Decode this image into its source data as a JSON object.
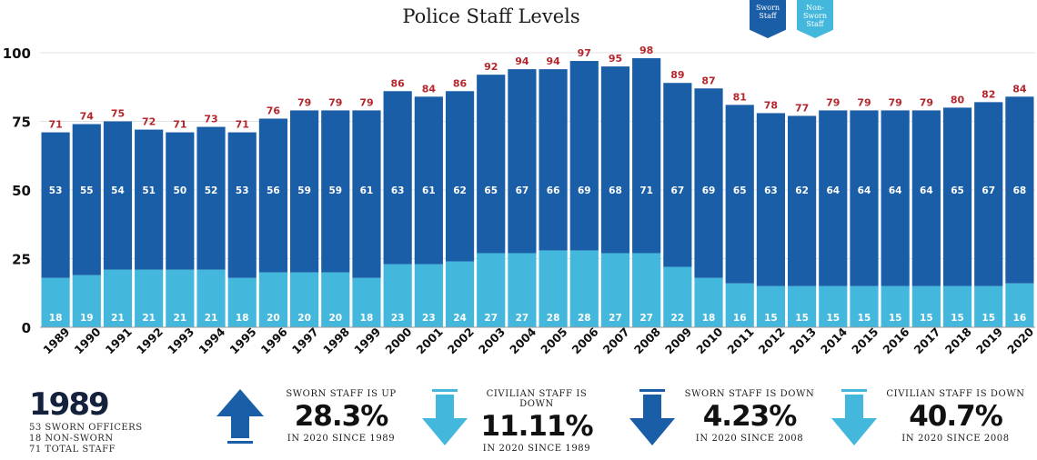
{
  "chart_data": {
    "type": "bar",
    "stacked": true,
    "title": "Police Staff Levels",
    "categories": [
      "1989",
      "1990",
      "1991",
      "1992",
      "1993",
      "1994",
      "1995",
      "1996",
      "1997",
      "1998",
      "1999",
      "2000",
      "2001",
      "2002",
      "2003",
      "2004",
      "2005",
      "2006",
      "2007",
      "2008",
      "2009",
      "2010",
      "2011",
      "2012",
      "2013",
      "2014",
      "2015",
      "2016",
      "2017",
      "2018",
      "2019",
      "2020"
    ],
    "series": [
      {
        "name": "Non-Sworn Staff",
        "color": "#43b8dc",
        "values": [
          18,
          19,
          21,
          21,
          21,
          21,
          18,
          20,
          20,
          20,
          18,
          23,
          23,
          24,
          27,
          27,
          28,
          28,
          27,
          27,
          22,
          18,
          16,
          15,
          15,
          15,
          15,
          15,
          15,
          15,
          15,
          16
        ]
      },
      {
        "name": "Sworn Staff",
        "color": "#1b5ea8",
        "values": [
          53,
          55,
          54,
          51,
          50,
          52,
          53,
          56,
          59,
          59,
          61,
          63,
          61,
          62,
          65,
          67,
          66,
          69,
          68,
          71,
          67,
          69,
          65,
          63,
          62,
          64,
          64,
          64,
          64,
          65,
          67,
          68
        ]
      }
    ],
    "totals": [
      71,
      74,
      75,
      72,
      71,
      73,
      71,
      76,
      79,
      79,
      79,
      86,
      84,
      86,
      92,
      94,
      94,
      97,
      95,
      98,
      89,
      87,
      81,
      78,
      77,
      79,
      79,
      79,
      79,
      80,
      82,
      84
    ],
    "ylim": [
      0,
      100
    ],
    "yticks": [
      0,
      25,
      50,
      75,
      100
    ],
    "grid": true,
    "legend": "top-right",
    "total_label_color": "#b5252c"
  },
  "legend": {
    "sworn_label": "Sworn Staff",
    "non_sworn_label": "Non-Sworn Staff"
  },
  "summary": {
    "year": "1989",
    "line1": "53 SWORN OFFICERS",
    "line2": "18 NON-SWORN",
    "line3": "71 TOTAL STAFF"
  },
  "stats": [
    {
      "head": "SWORN STAFF IS UP",
      "value": "28.3%",
      "foot": "IN 2020 SINCE 1989",
      "direction": "up",
      "color": "#1b5ea8"
    },
    {
      "head": "CIVILIAN STAFF IS DOWN",
      "value": "11.11%",
      "foot": "IN 2020 SINCE 1989",
      "direction": "down",
      "color": "#43b8dc"
    },
    {
      "head": "SWORN STAFF IS DOWN",
      "value": "4.23%",
      "foot": "IN 2020 SINCE 2008",
      "direction": "down",
      "color": "#1b5ea8"
    },
    {
      "head": "CIVILIAN STAFF IS DOWN",
      "value": "40.7%",
      "foot": "IN 2020 SINCE 2008",
      "direction": "down",
      "color": "#43b8dc"
    }
  ]
}
